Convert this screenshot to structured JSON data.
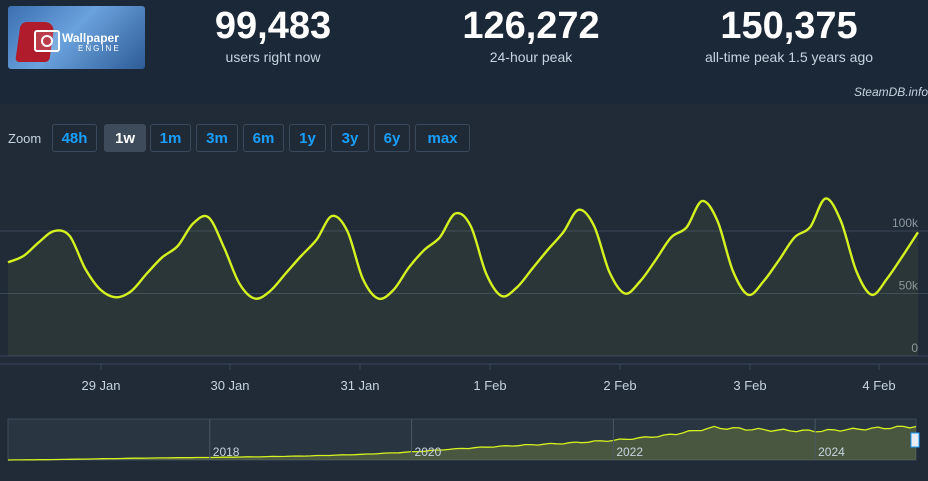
{
  "header": {
    "logo_text": "Wallpaper",
    "logo_subtext": "ENGINE",
    "stats": [
      {
        "value": "99,483",
        "label": "users right now"
      },
      {
        "value": "126,272",
        "label": "24-hour peak"
      },
      {
        "value": "150,375",
        "label": "all-time peak 1.5 years ago"
      }
    ]
  },
  "credit": "SteamDB.info",
  "zoom": {
    "label": "Zoom",
    "options": [
      "48h",
      "1w",
      "1m",
      "3m",
      "6m",
      "1y",
      "3y",
      "6y",
      "max"
    ],
    "active": "1w"
  },
  "colors": {
    "line": "#d4f21f",
    "background": "#1b2838",
    "panel": "#212b38",
    "accent": "#1a9fff"
  },
  "chart_data": [
    {
      "type": "line",
      "series": [
        {
          "x": [
            "Jan 28 00:00",
            "Jan 28 03:00",
            "Jan 28 06:00",
            "Jan 28 09:00",
            "Jan 28 12:00",
            "Jan 28 15:00",
            "Jan 28 18:00",
            "Jan 28 21:00",
            "Jan 29 00:00",
            "Jan 29 03:00",
            "Jan 29 06:00",
            "Jan 29 09:00",
            "Jan 29 12:00",
            "Jan 29 15:00",
            "Jan 29 18:00",
            "Jan 29 21:00",
            "Jan 30 00:00",
            "Jan 30 03:00",
            "Jan 30 06:00",
            "Jan 30 09:00",
            "Jan 30 12:00",
            "Jan 30 15:00",
            "Jan 30 18:00",
            "Jan 30 21:00",
            "Jan 31 00:00",
            "Jan 31 03:00",
            "Jan 31 06:00",
            "Jan 31 09:00",
            "Jan 31 12:00",
            "Jan 31 15:00",
            "Jan 31 18:00",
            "Jan 31 21:00",
            "Feb 1 00:00",
            "Feb 1 03:00",
            "Feb 1 06:00",
            "Feb 1 09:00",
            "Feb 1 12:00",
            "Feb 1 15:00",
            "Feb 1 18:00",
            "Feb 1 21:00",
            "Feb 2 00:00",
            "Feb 2 03:00",
            "Feb 2 06:00",
            "Feb 2 09:00",
            "Feb 2 12:00",
            "Feb 2 15:00",
            "Feb 2 18:00",
            "Feb 2 21:00",
            "Feb 3 00:00",
            "Feb 3 03:00",
            "Feb 3 06:00",
            "Feb 3 09:00",
            "Feb 3 12:00",
            "Feb 3 15:00",
            "Feb 3 18:00",
            "Feb 3 21:00",
            "Feb 4 00:00",
            "Feb 4 03:00",
            "Feb 4 06:00",
            "Feb 4 09:00"
          ],
          "values": [
            75000,
            80000,
            91000,
            100000,
            96000,
            70000,
            53000,
            47000,
            52000,
            66000,
            79000,
            88000,
            106000,
            111000,
            87000,
            58000,
            46000,
            52000,
            66000,
            80000,
            93000,
            112000,
            100000,
            62000,
            46000,
            53000,
            71000,
            85000,
            95000,
            114000,
            104000,
            66000,
            48000,
            55000,
            70000,
            85000,
            99000,
            117000,
            104000,
            67000,
            50000,
            60000,
            77000,
            95000,
            103000,
            124000,
            108000,
            68000,
            49000,
            60000,
            77000,
            95000,
            103000,
            126000,
            108000,
            68000,
            49000,
            62000,
            80000,
            99000
          ]
        }
      ],
      "xticks": [
        "29 Jan",
        "30 Jan",
        "31 Jan",
        "1 Feb",
        "2 Feb",
        "3 Feb",
        "4 Feb"
      ],
      "yticks": [
        "0",
        "50k",
        "100k"
      ],
      "ylim": [
        0,
        135000
      ],
      "grid": true,
      "legend": "none"
    },
    {
      "type": "area",
      "series": [
        {
          "x": [
            2016.0,
            2016.5,
            2017.0,
            2017.5,
            2018.0,
            2018.5,
            2019.0,
            2019.5,
            2020.0,
            2020.5,
            2021.0,
            2021.5,
            2022.0,
            2022.5,
            2023.0,
            2023.5,
            2024.0,
            2024.5,
            2025.0
          ],
          "values": [
            0,
            2000,
            6000,
            9000,
            11000,
            14000,
            18000,
            24000,
            35000,
            50000,
            62000,
            72000,
            85000,
            105000,
            140000,
            130000,
            125000,
            135000,
            145000
          ]
        }
      ],
      "xticks": [
        "2018",
        "2020",
        "2022",
        "2024"
      ],
      "grid": false,
      "legend": "none"
    }
  ]
}
